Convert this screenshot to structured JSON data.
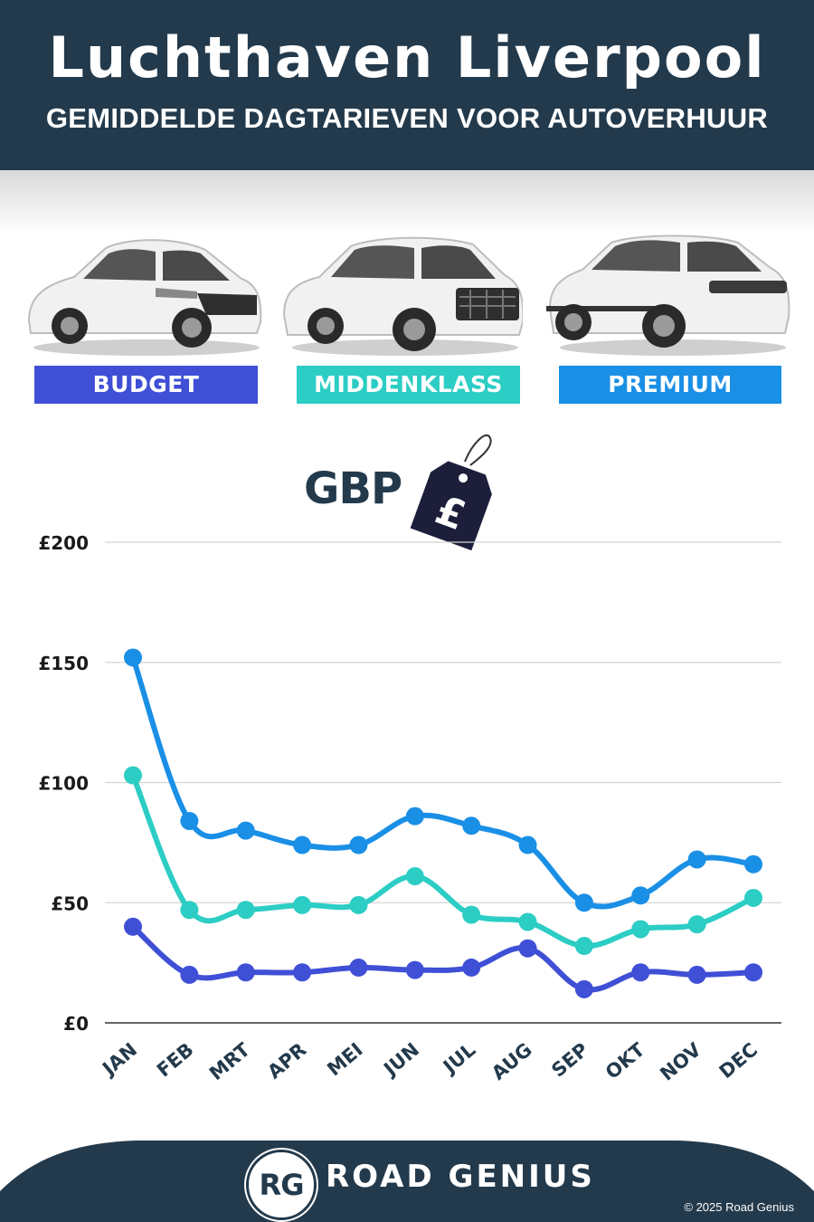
{
  "header": {
    "title": "Luchthaven Liverpool",
    "subtitle": "GEMIDDELDE DAGTARIEVEN VOOR AUTOVERHUUR"
  },
  "categories": [
    {
      "label": "BUDGET",
      "color": "#3f4fd6"
    },
    {
      "label": "MIDDENKLASS",
      "color": "#2ccdc4"
    },
    {
      "label": "PREMIUM",
      "color": "#1a8fe6"
    }
  ],
  "currency": {
    "label": "GBP",
    "symbol": "£"
  },
  "chart_data": {
    "type": "line",
    "categories": [
      "JAN",
      "FEB",
      "MRT",
      "APR",
      "MEI",
      "JUN",
      "JUL",
      "AUG",
      "SEP",
      "OKT",
      "NOV",
      "DEC"
    ],
    "y_ticks": [
      "£0",
      "£50",
      "£100",
      "£150",
      "£200"
    ],
    "ylim": [
      0,
      200
    ],
    "grid": true,
    "series": [
      {
        "name": "PREMIUM",
        "color": "#1a8fe6",
        "values": [
          152,
          84,
          80,
          74,
          74,
          86,
          82,
          74,
          50,
          53,
          68,
          66
        ]
      },
      {
        "name": "MIDDENKLASS",
        "color": "#2ccdc4",
        "values": [
          103,
          47,
          47,
          49,
          49,
          61,
          45,
          42,
          32,
          39,
          41,
          52
        ]
      },
      {
        "name": "BUDGET",
        "color": "#3f4fd6",
        "values": [
          40,
          20,
          21,
          21,
          23,
          22,
          23,
          31,
          14,
          21,
          20,
          21
        ]
      }
    ]
  },
  "footer": {
    "logo": "RG",
    "brand": "ROAD GENIUS",
    "copyright": "© 2025 Road Genius",
    "color": "#233a4c"
  }
}
